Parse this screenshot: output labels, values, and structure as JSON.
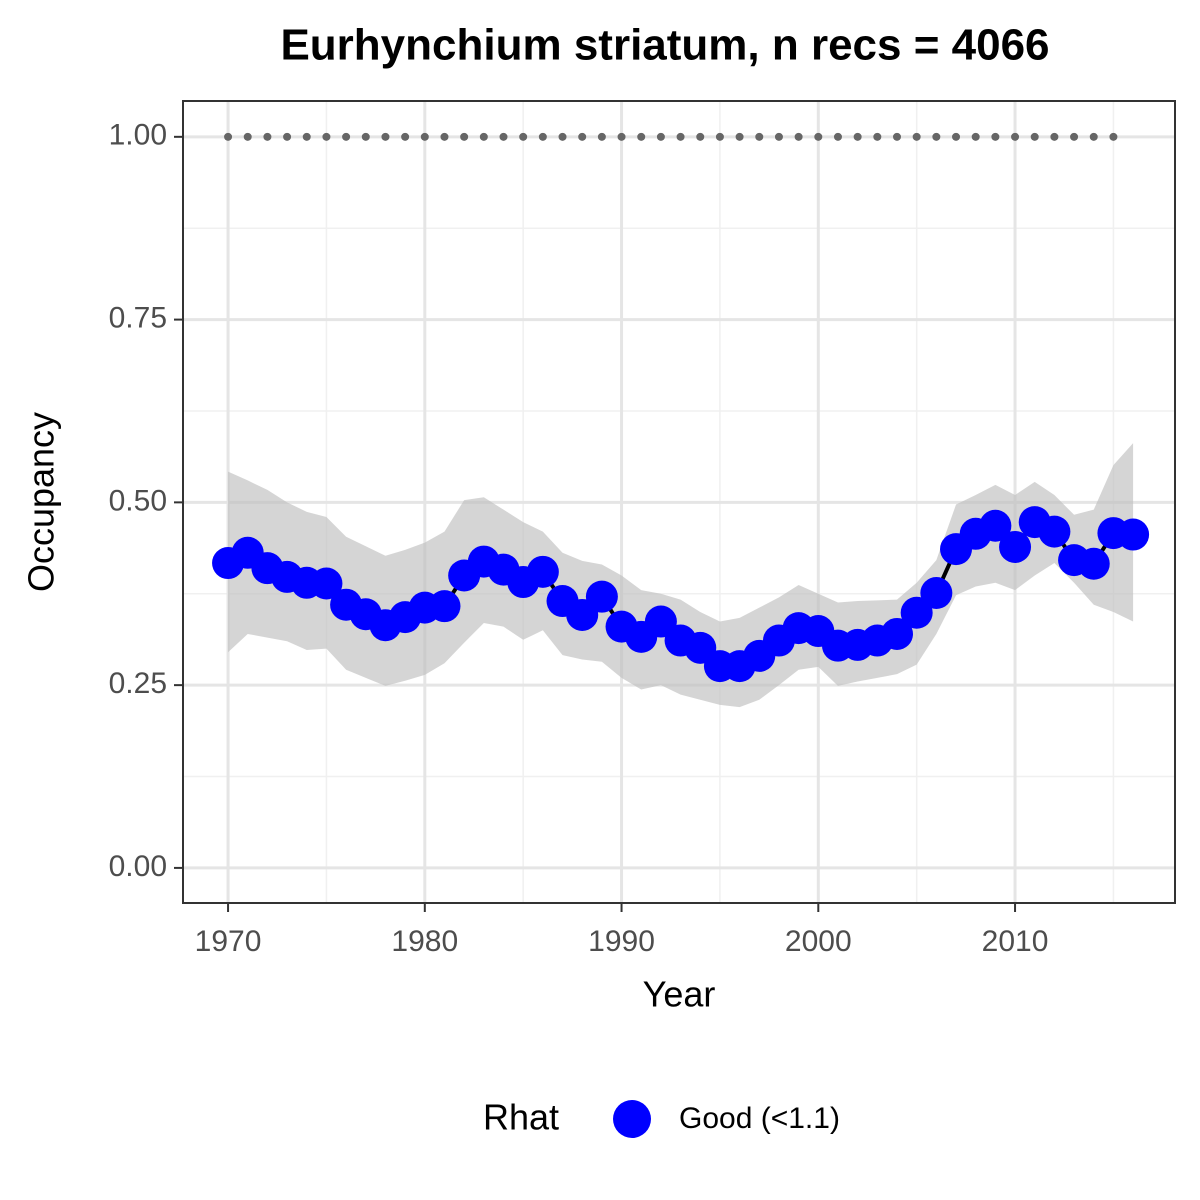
{
  "chart_data": {
    "type": "line",
    "title": "Eurhynchium striatum, n recs = 4066",
    "x_label": "Year",
    "y_label": "Occupancy",
    "x": [
      1970,
      1971,
      1972,
      1973,
      1974,
      1975,
      1976,
      1977,
      1978,
      1979,
      1980,
      1981,
      1982,
      1983,
      1984,
      1985,
      1986,
      1987,
      1988,
      1989,
      1990,
      1991,
      1992,
      1993,
      1994,
      1995,
      1996,
      1997,
      1998,
      1999,
      2000,
      2001,
      2002,
      2003,
      2004,
      2005,
      2006,
      2007,
      2008,
      2009,
      2010,
      2011,
      2012,
      2013,
      2014,
      2015,
      2016
    ],
    "series": [
      {
        "name": "Good (<1.1)",
        "color": "#0000ff",
        "values": [
          0.417,
          0.431,
          0.41,
          0.398,
          0.39,
          0.389,
          0.36,
          0.347,
          0.332,
          0.343,
          0.356,
          0.358,
          0.4,
          0.419,
          0.408,
          0.391,
          0.405,
          0.365,
          0.346,
          0.371,
          0.33,
          0.316,
          0.337,
          0.311,
          0.301,
          0.276,
          0.276,
          0.29,
          0.311,
          0.328,
          0.324,
          0.304,
          0.305,
          0.311,
          0.32,
          0.349,
          0.376,
          0.436,
          0.457,
          0.468,
          0.439,
          0.473,
          0.46,
          0.421,
          0.416,
          0.458,
          0.456
        ],
        "upper": [
          0.542,
          0.53,
          0.517,
          0.5,
          0.487,
          0.48,
          0.453,
          0.44,
          0.427,
          0.435,
          0.445,
          0.46,
          0.503,
          0.507,
          0.49,
          0.473,
          0.46,
          0.431,
          0.42,
          0.415,
          0.4,
          0.38,
          0.375,
          0.367,
          0.35,
          0.337,
          0.342,
          0.356,
          0.37,
          0.387,
          0.375,
          0.363,
          0.365,
          0.366,
          0.367,
          0.39,
          0.421,
          0.497,
          0.51,
          0.524,
          0.51,
          0.528,
          0.51,
          0.483,
          0.49,
          0.551,
          0.581
        ],
        "lower": [
          0.295,
          0.32,
          0.315,
          0.31,
          0.298,
          0.3,
          0.271,
          0.26,
          0.249,
          0.256,
          0.264,
          0.28,
          0.308,
          0.335,
          0.33,
          0.312,
          0.325,
          0.291,
          0.285,
          0.282,
          0.26,
          0.244,
          0.25,
          0.237,
          0.23,
          0.223,
          0.22,
          0.23,
          0.25,
          0.271,
          0.275,
          0.249,
          0.255,
          0.26,
          0.265,
          0.278,
          0.32,
          0.373,
          0.385,
          0.39,
          0.38,
          0.4,
          0.417,
          0.39,
          0.36,
          0.35,
          0.337
        ]
      }
    ],
    "dotted_line": {
      "color": "#666666",
      "values": [
        1,
        1,
        1,
        1,
        1,
        1,
        1,
        1,
        1,
        1,
        1,
        1,
        1,
        1,
        1,
        1,
        1,
        1,
        1,
        1,
        1,
        1,
        1,
        1,
        1,
        1,
        1,
        1,
        1,
        1,
        1,
        1,
        1,
        1,
        1,
        1,
        1,
        1,
        1,
        1,
        1,
        1,
        1,
        1,
        1,
        1,
        null
      ]
    },
    "ribbon_color": "#bebebe",
    "line_color": "#000000",
    "xlim": [
      1967.71,
      2018.13
    ],
    "ylim": [
      -0.048,
      1.049
    ],
    "xticks": [
      1970,
      1980,
      1990,
      2000,
      2010
    ],
    "yticks": [
      {
        "value": 0,
        "label": "0.00"
      },
      {
        "value": 0.25,
        "label": "0.25"
      },
      {
        "value": 0.5,
        "label": "0.50"
      },
      {
        "value": 0.75,
        "label": "0.75"
      },
      {
        "value": 1,
        "label": "1.00"
      }
    ],
    "x_minor_grid": [
      1975,
      1985,
      1995,
      2005,
      2015
    ],
    "y_minor_grid": [
      0.125,
      0.375,
      0.625,
      0.875
    ],
    "grid": true,
    "legend_title": "Rhat",
    "legend_position": "bottom"
  }
}
